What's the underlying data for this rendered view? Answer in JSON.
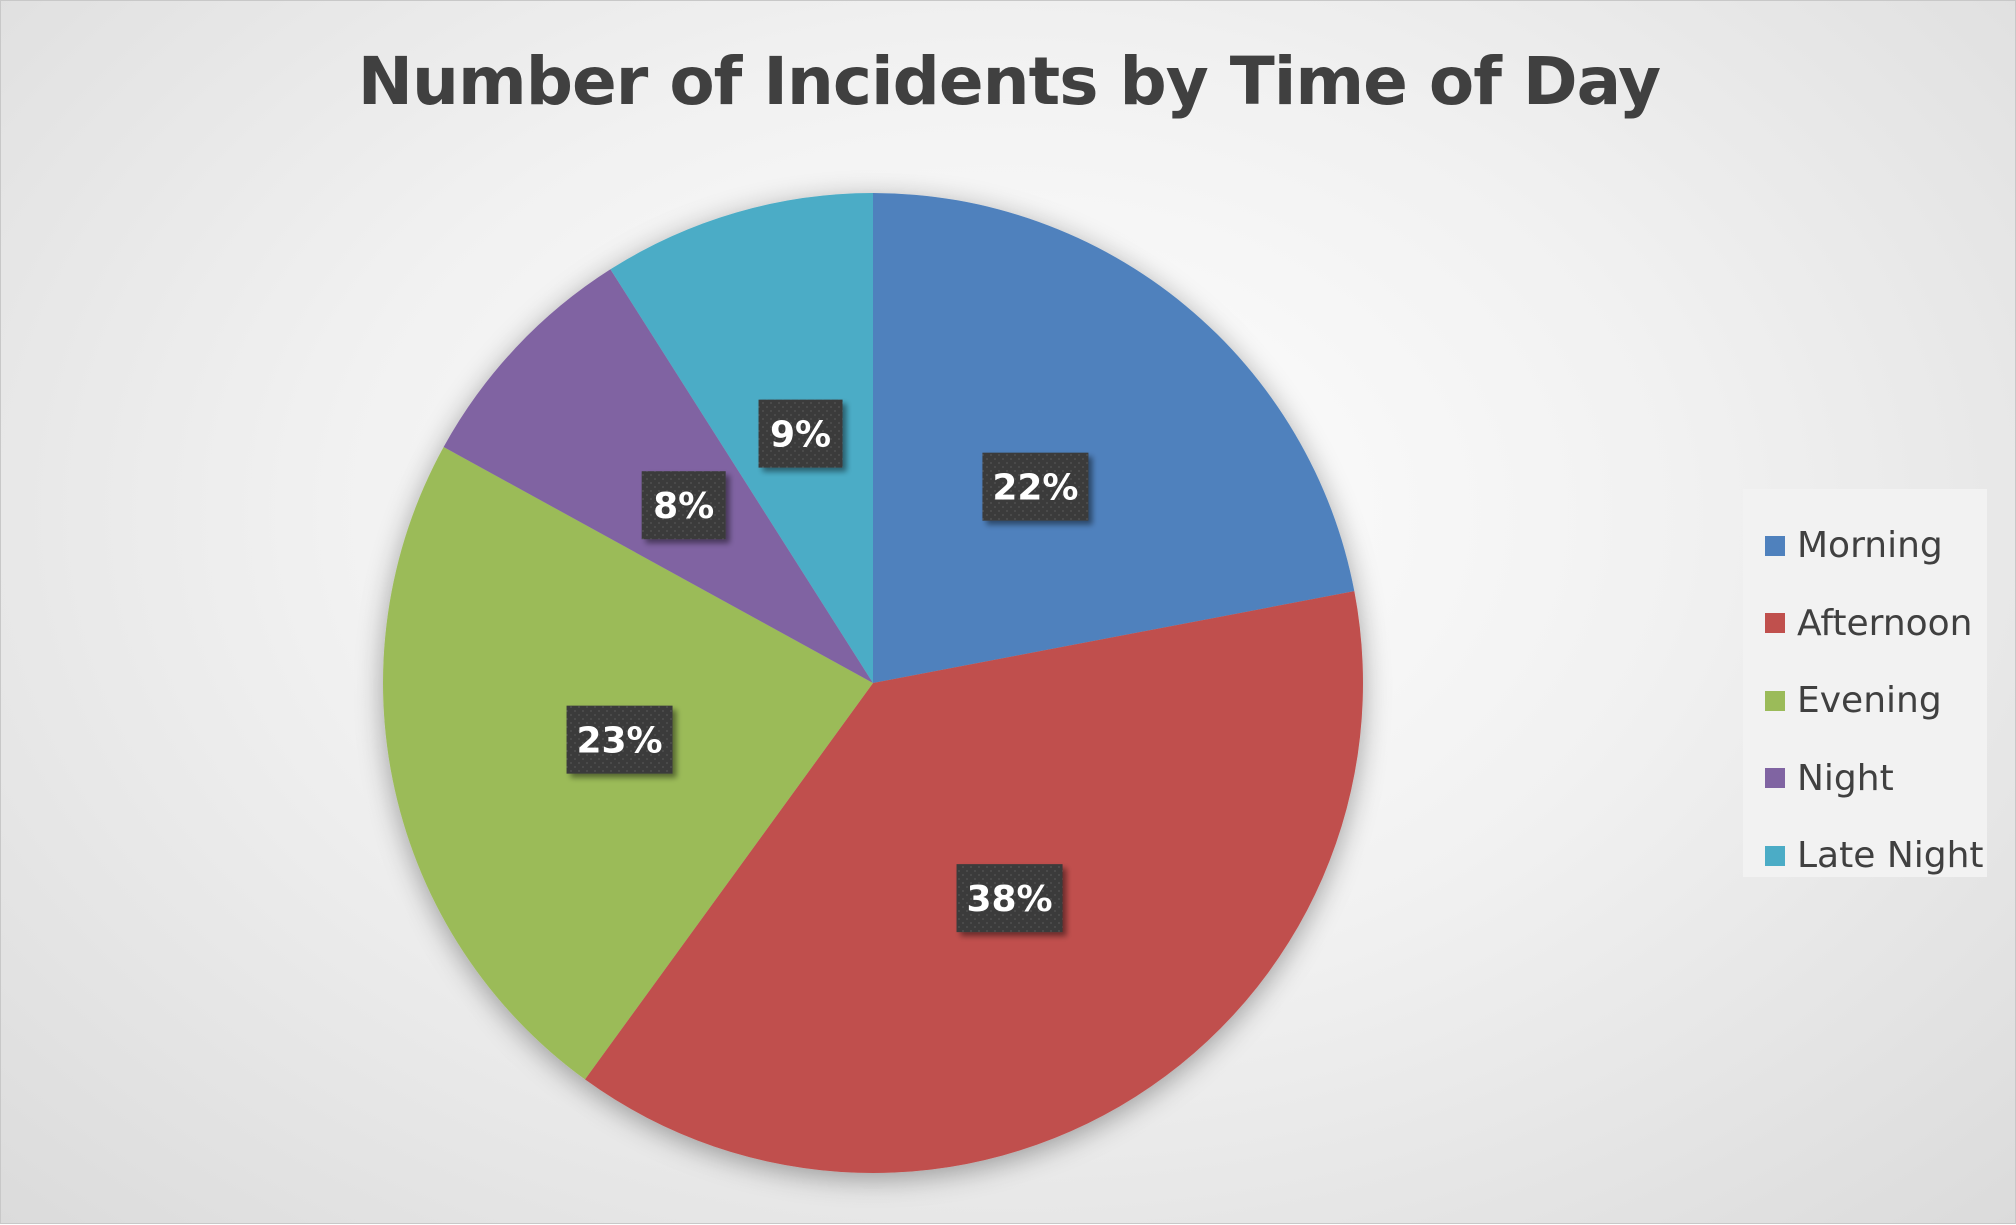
{
  "chart_data": {
    "type": "pie",
    "title": "Number of Incidents by Time of Day",
    "categories": [
      "Morning",
      "Afternoon",
      "Evening",
      "Night",
      "Late Night"
    ],
    "values": [
      22,
      38,
      23,
      8,
      9
    ],
    "data_labels": [
      "22%",
      "38%",
      "23%",
      "8%",
      "9%"
    ],
    "colors": [
      "#4f81bd",
      "#c0504d",
      "#9bbb59",
      "#8064a2",
      "#4bacc6"
    ],
    "start": "12 o'clock",
    "direction": "clockwise",
    "legend_position": "right"
  }
}
